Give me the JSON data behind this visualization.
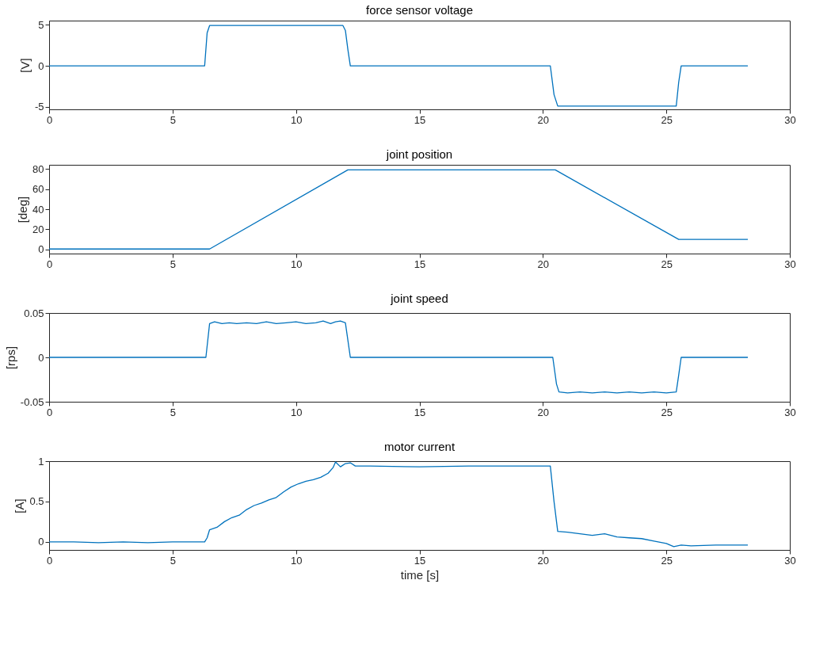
{
  "chart_data": [
    {
      "type": "line",
      "title": "force sensor voltage",
      "ylabel": "[V]",
      "color": "#0072bd",
      "grid": false,
      "x": [
        0,
        6.3,
        6.4,
        6.5,
        11.9,
        12.0,
        12.1,
        12.2,
        20.3,
        20.45,
        20.6,
        25.4,
        25.5,
        25.6,
        28.3
      ],
      "values": [
        0,
        0,
        4.0,
        4.9,
        4.9,
        4.3,
        2.0,
        0,
        0,
        -3.5,
        -4.9,
        -4.9,
        -2.0,
        0,
        0
      ],
      "xlim": [
        0,
        30
      ],
      "xticks": [
        0,
        5,
        10,
        15,
        20,
        25,
        30
      ],
      "ylim": [
        -5.3,
        5.5
      ],
      "yticks": [
        -5,
        0,
        5
      ]
    },
    {
      "type": "line",
      "title": "joint position",
      "ylabel": "[deg]",
      "color": "#0072bd",
      "grid": false,
      "x": [
        0,
        6.5,
        12.1,
        20.5,
        25.5,
        28.3
      ],
      "values": [
        0.5,
        0.5,
        79,
        79,
        10,
        10
      ],
      "xlim": [
        0,
        30
      ],
      "xticks": [
        0,
        5,
        10,
        15,
        20,
        25,
        30
      ],
      "ylim": [
        -4,
        84
      ],
      "yticks": [
        0,
        20,
        40,
        60,
        80
      ]
    },
    {
      "type": "line",
      "title": "joint speed",
      "ylabel": "[rps]",
      "color": "#0072bd",
      "grid": false,
      "x": [
        0,
        6.35,
        6.5,
        6.7,
        7.0,
        7.3,
        7.6,
        8.0,
        8.4,
        8.8,
        9.2,
        9.6,
        10.0,
        10.4,
        10.8,
        11.1,
        11.4,
        11.6,
        11.8,
        12.0,
        12.2,
        20.4,
        20.55,
        20.65,
        21.0,
        21.5,
        22.0,
        22.5,
        23.0,
        23.5,
        24.0,
        24.5,
        25.0,
        25.4,
        25.5,
        25.6,
        28.3
      ],
      "values": [
        0,
        0,
        0.038,
        0.04,
        0.038,
        0.039,
        0.038,
        0.039,
        0.038,
        0.04,
        0.038,
        0.039,
        0.04,
        0.038,
        0.039,
        0.041,
        0.038,
        0.04,
        0.041,
        0.039,
        0,
        0,
        -0.03,
        -0.039,
        -0.04,
        -0.039,
        -0.04,
        -0.039,
        -0.04,
        -0.039,
        -0.04,
        -0.039,
        -0.04,
        -0.039,
        -0.02,
        0,
        0
      ],
      "xlim": [
        0,
        30
      ],
      "xticks": [
        0,
        5,
        10,
        15,
        20,
        25,
        30
      ],
      "ylim": [
        -0.05,
        0.05
      ],
      "yticks": [
        -0.05,
        0,
        0.05
      ]
    },
    {
      "type": "line",
      "title": "motor current",
      "ylabel": "[A]",
      "xlabel": "time [s]",
      "color": "#0072bd",
      "grid": false,
      "x": [
        0,
        1,
        2,
        3,
        4,
        5,
        6,
        6.3,
        6.4,
        6.5,
        6.8,
        7.1,
        7.4,
        7.7,
        8.0,
        8.3,
        8.6,
        8.9,
        9.2,
        9.5,
        9.8,
        10.1,
        10.4,
        10.7,
        11.0,
        11.3,
        11.5,
        11.6,
        11.8,
        12.0,
        12.2,
        12.4,
        13,
        15,
        17,
        19,
        20.3,
        20.45,
        20.6,
        21.0,
        21.5,
        22.0,
        22.5,
        23.0,
        23.5,
        24.0,
        24.5,
        25.0,
        25.3,
        25.6,
        26.0,
        27.0,
        28.3
      ],
      "values": [
        0,
        0.0,
        -0.01,
        0.0,
        -0.01,
        0.0,
        0.0,
        0.0,
        0.05,
        0.15,
        0.18,
        0.25,
        0.3,
        0.33,
        0.4,
        0.45,
        0.48,
        0.52,
        0.55,
        0.62,
        0.68,
        0.72,
        0.75,
        0.77,
        0.8,
        0.85,
        0.92,
        0.99,
        0.93,
        0.97,
        0.98,
        0.94,
        0.94,
        0.93,
        0.94,
        0.94,
        0.94,
        0.5,
        0.13,
        0.12,
        0.1,
        0.08,
        0.1,
        0.06,
        0.05,
        0.04,
        0.01,
        -0.02,
        -0.06,
        -0.04,
        -0.05,
        -0.04,
        -0.04
      ],
      "xlim": [
        0,
        30
      ],
      "xticks": [
        0,
        5,
        10,
        15,
        20,
        25,
        30
      ],
      "ylim": [
        -0.1,
        1
      ],
      "yticks": [
        0,
        0.5,
        1
      ]
    }
  ]
}
